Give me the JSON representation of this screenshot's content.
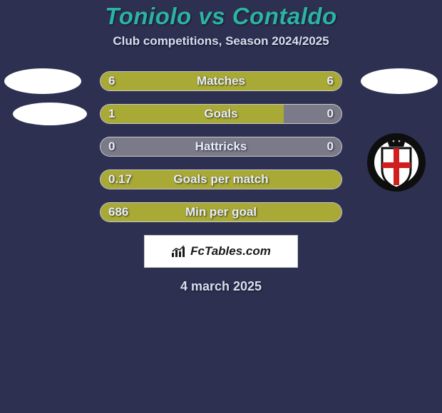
{
  "colors": {
    "background": "#2d3050",
    "accent_title": "#2bb3a3",
    "accent_text": "#d7dff2",
    "bar_fill": "#a9a936",
    "bar_empty": "#7a7a88",
    "value_text": "#e8eefc",
    "label_text": "#e8eefc",
    "attrib_text": "#1a1a1a"
  },
  "header": {
    "title": "Toniolo vs Contaldo",
    "title_fontsize": 33,
    "subtitle": "Club competitions, Season 2024/2025",
    "subtitle_fontsize": 17
  },
  "stats": {
    "label_fontsize": 17,
    "value_fontsize": 17,
    "rows": [
      {
        "key": "matches",
        "label": "Matches",
        "left": "6",
        "right": "6",
        "left_pct": 50,
        "right_pct": 50
      },
      {
        "key": "goals",
        "label": "Goals",
        "left": "1",
        "right": "0",
        "left_pct": 76,
        "right_pct": 0
      },
      {
        "key": "hattricks",
        "label": "Hattricks",
        "left": "0",
        "right": "0",
        "left_pct": 0,
        "right_pct": 0
      },
      {
        "key": "gpm",
        "label": "Goals per match",
        "left": "0.17",
        "right": "",
        "left_pct": 100,
        "right_pct": 0
      },
      {
        "key": "mpg",
        "label": "Min per goal",
        "left": "686",
        "right": "",
        "left_pct": 100,
        "right_pct": 0
      }
    ]
  },
  "attribution": {
    "text": "FcTables.com",
    "fontsize": 17
  },
  "footer": {
    "date": "4 march 2025",
    "date_fontsize": 18
  },
  "crest": {
    "ring_color": "#0e0e0e",
    "shield_fill": "#ffffff",
    "shield_stroke": "#0e0e0e",
    "cross_color": "#cf1f1f"
  }
}
